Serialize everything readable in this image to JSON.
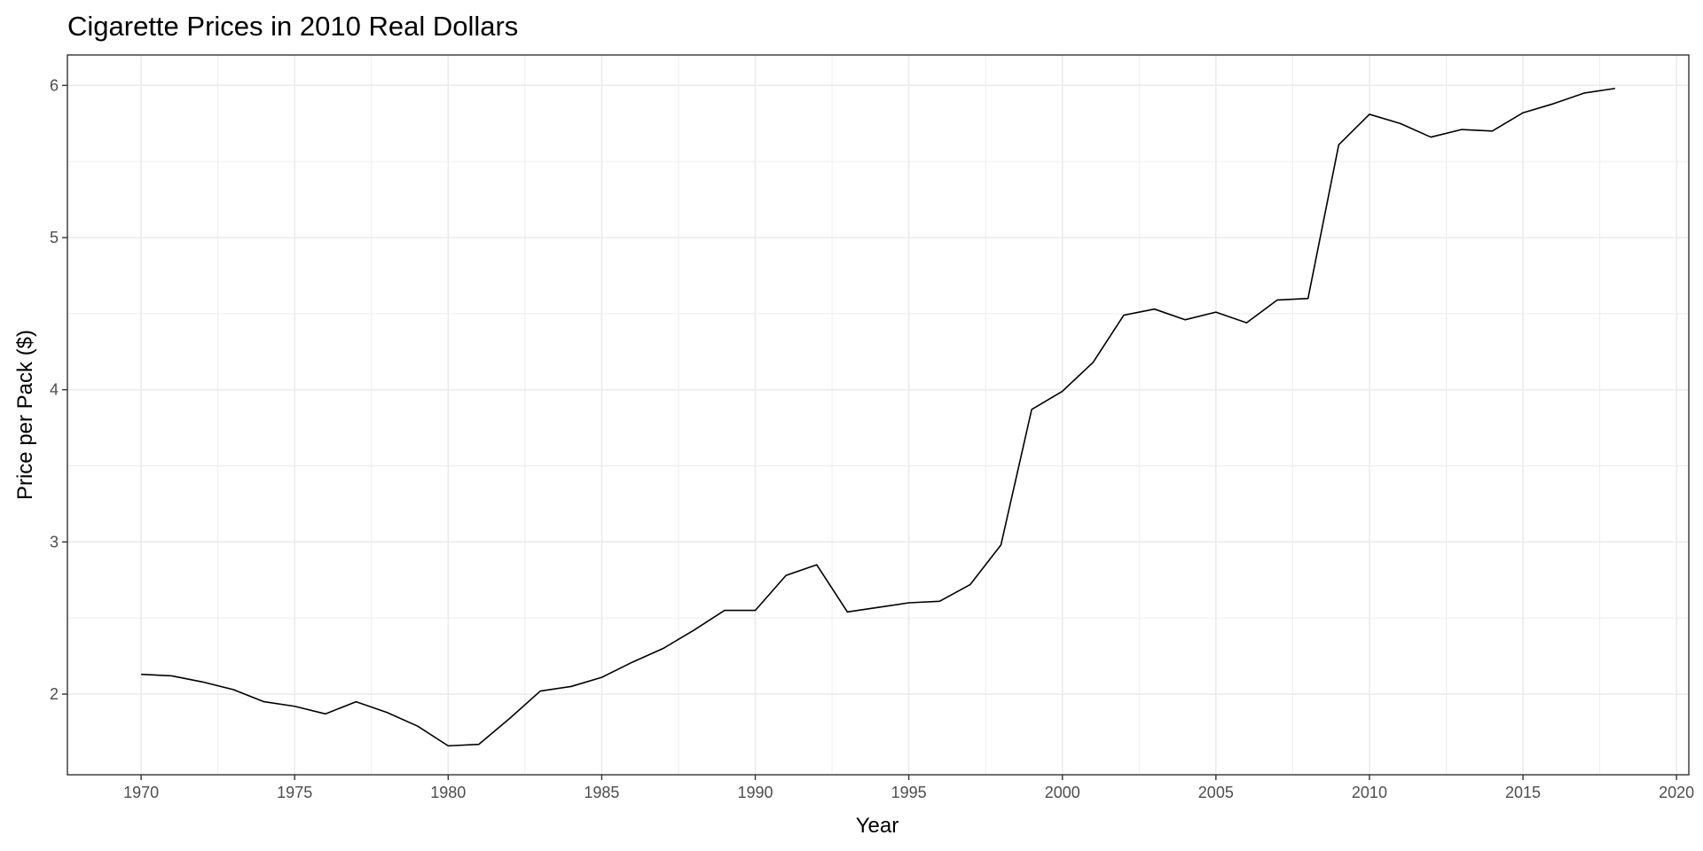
{
  "chart_data": {
    "type": "line",
    "title": "Cigarette Prices in 2010 Real Dollars",
    "xlabel": "Year",
    "ylabel": "Price per Pack ($)",
    "xlim": [
      1967.6,
      2020.4
    ],
    "ylim": [
      1.47,
      6.2
    ],
    "x_ticks": [
      1970,
      1975,
      1980,
      1985,
      1990,
      1995,
      2000,
      2005,
      2010,
      2015,
      2020
    ],
    "x_tick_labels": [
      "1970",
      "1975",
      "1980",
      "1985",
      "1990",
      "1995",
      "2000",
      "2005",
      "2010",
      "2015",
      "2020"
    ],
    "x_minor_ticks": [
      1972.5,
      1977.5,
      1982.5,
      1987.5,
      1992.5,
      1997.5,
      2002.5,
      2007.5,
      2012.5,
      2017.5
    ],
    "y_ticks": [
      2,
      3,
      4,
      5,
      6
    ],
    "y_tick_labels": [
      "2",
      "3",
      "4",
      "5",
      "6"
    ],
    "y_minor_ticks": [
      2.5,
      3.5,
      4.5,
      5.5
    ],
    "grid": true,
    "line_color": "#000000",
    "grid_color": "#ebebeb",
    "panel_border_color": "#333333",
    "series": [
      {
        "x": [
          1970,
          1971,
          1972,
          1973,
          1974,
          1975,
          1976,
          1977,
          1978,
          1979,
          1980,
          1981,
          1982,
          1983,
          1984,
          1985,
          1986,
          1987,
          1988,
          1989,
          1990,
          1991,
          1992,
          1993,
          1994,
          1995,
          1996,
          1997,
          1998,
          1999,
          2000,
          2001,
          2002,
          2003,
          2004,
          2005,
          2006,
          2007,
          2008,
          2009,
          2010,
          2011,
          2012,
          2013,
          2014,
          2015,
          2016,
          2017,
          2018
        ],
        "values": [
          2.13,
          2.12,
          2.08,
          2.03,
          1.95,
          1.92,
          1.87,
          1.95,
          1.88,
          1.79,
          1.66,
          1.67,
          1.84,
          2.02,
          2.05,
          2.11,
          2.21,
          2.3,
          2.42,
          2.55,
          2.55,
          2.78,
          2.85,
          2.54,
          2.57,
          2.6,
          2.61,
          2.72,
          2.98,
          3.87,
          3.99,
          4.18,
          4.49,
          4.53,
          4.46,
          4.51,
          4.44,
          4.59,
          4.6,
          5.61,
          5.81,
          5.75,
          5.66,
          5.71,
          5.7,
          5.82,
          5.88,
          5.95,
          5.98
        ]
      }
    ]
  }
}
